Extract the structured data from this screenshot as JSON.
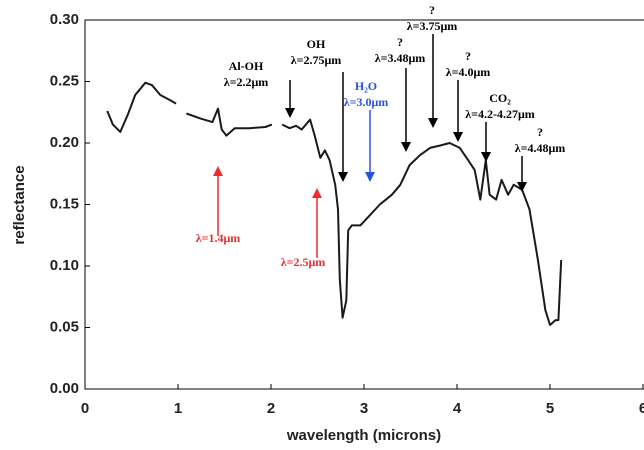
{
  "chart_data": {
    "type": "line",
    "xlabel": "wavelength (microns)",
    "ylabel": "reflectance",
    "xlim": [
      0,
      6
    ],
    "xticks": [
      0,
      1,
      2,
      3,
      4,
      5,
      6
    ],
    "ylim": [
      0,
      0.3
    ],
    "yticks": [
      {
        "value": 0,
        "label": "0.00"
      },
      {
        "value": 0.05,
        "label": "0.05"
      },
      {
        "value": 0.1,
        "label": "0.10"
      },
      {
        "value": 0.15,
        "label": "0.15"
      },
      {
        "value": 0.2,
        "label": "0.20"
      },
      {
        "value": 0.25,
        "label": "0.25"
      },
      {
        "value": 0.3,
        "label": "0.30"
      }
    ],
    "color": "#1a1a1a",
    "x": [
      0.24,
      0.3,
      0.38,
      0.46,
      0.54,
      0.65,
      0.72,
      0.81,
      0.91,
      0.98,
      1.03,
      1.09,
      1.24,
      1.37,
      1.43,
      1.47,
      1.52,
      1.61,
      1.77,
      1.94,
      2.01,
      2.06,
      2.12,
      2.2,
      2.27,
      2.33,
      2.42,
      2.47,
      2.53,
      2.58,
      2.63,
      2.69,
      2.72,
      2.74,
      2.77,
      2.81,
      2.83,
      2.87,
      2.96,
      3.06,
      3.17,
      3.3,
      3.39,
      3.49,
      3.6,
      3.71,
      3.82,
      3.92,
      4.03,
      4.12,
      4.19,
      4.25,
      4.31,
      4.35,
      4.42,
      4.48,
      4.55,
      4.61,
      4.7,
      4.78,
      4.87,
      4.95,
      5.0,
      5.06,
      5.09,
      5.12
    ],
    "values": [
      0.226,
      0.215,
      0.209,
      0.223,
      0.239,
      0.249,
      0.247,
      0.239,
      0.235,
      0.232,
      null,
      0.224,
      0.22,
      0.217,
      0.228,
      0.211,
      0.206,
      0.212,
      0.212,
      0.213,
      0.215,
      null,
      0.215,
      0.212,
      0.214,
      0.211,
      0.219,
      0.206,
      0.188,
      0.194,
      0.186,
      0.166,
      0.146,
      0.089,
      0.058,
      0.072,
      0.129,
      0.133,
      0.133,
      0.141,
      0.15,
      0.158,
      0.166,
      0.182,
      0.19,
      0.196,
      0.198,
      0.2,
      0.196,
      0.186,
      0.178,
      0.154,
      0.186,
      0.158,
      0.154,
      0.17,
      0.158,
      0.166,
      0.162,
      0.146,
      0.105,
      0.064,
      0.052,
      0.056,
      0.056,
      0.105
    ],
    "annotations": [
      {
        "lines": [
          "Al-OH",
          "λ=2.2μm"
        ],
        "color": "#000000"
      },
      {
        "lines": [
          "OH",
          "λ=2.75μm"
        ],
        "color": "#000000"
      },
      {
        "lines": [
          "H₂O",
          "λ=3.0μm"
        ],
        "color": "#2a52e0"
      },
      {
        "lines": [
          "?",
          "λ=3.48μm"
        ],
        "color": "#000000"
      },
      {
        "lines": [
          "?",
          "λ=3.75μm"
        ],
        "color": "#000000"
      },
      {
        "lines": [
          "?",
          "λ=4.0μm"
        ],
        "color": "#000000"
      },
      {
        "lines": [
          "CO₂",
          "λ=4.2-4.27μm"
        ],
        "color": "#000000"
      },
      {
        "lines": [
          "?",
          "λ=4.48μm"
        ],
        "color": "#000000"
      },
      {
        "lines": [
          "λ=1.4μm"
        ],
        "color": "#ee2c2c"
      },
      {
        "lines": [
          "λ=2.5μm"
        ],
        "color": "#ee2c2c"
      }
    ]
  }
}
